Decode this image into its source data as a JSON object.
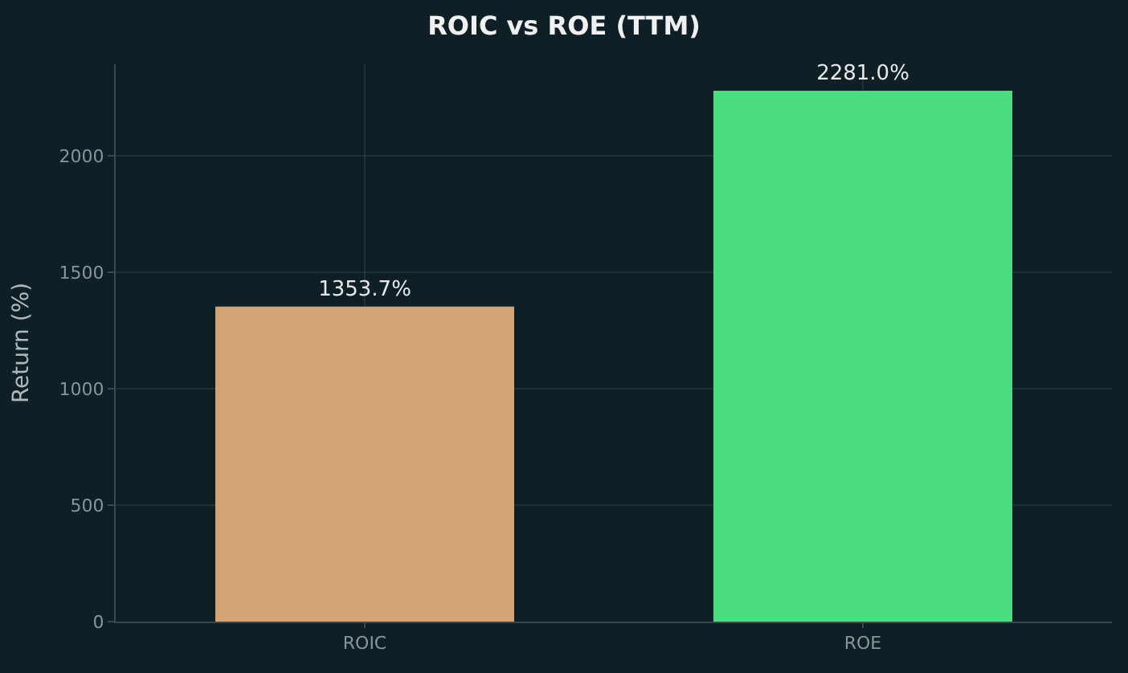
{
  "chart_data": {
    "type": "bar",
    "title": "ROIC vs ROE (TTM)",
    "ylabel": "Return (%)",
    "categories": [
      "ROIC",
      "ROE"
    ],
    "values": [
      1353.7,
      2281.0
    ],
    "colors": [
      "#d4a373",
      "#4ade80"
    ],
    "value_labels": [
      "1353.7%",
      "2281.0%"
    ],
    "ylim": [
      0,
      2395
    ],
    "yticks": [
      0,
      500,
      1000,
      1500,
      2000
    ],
    "grid": true
  }
}
